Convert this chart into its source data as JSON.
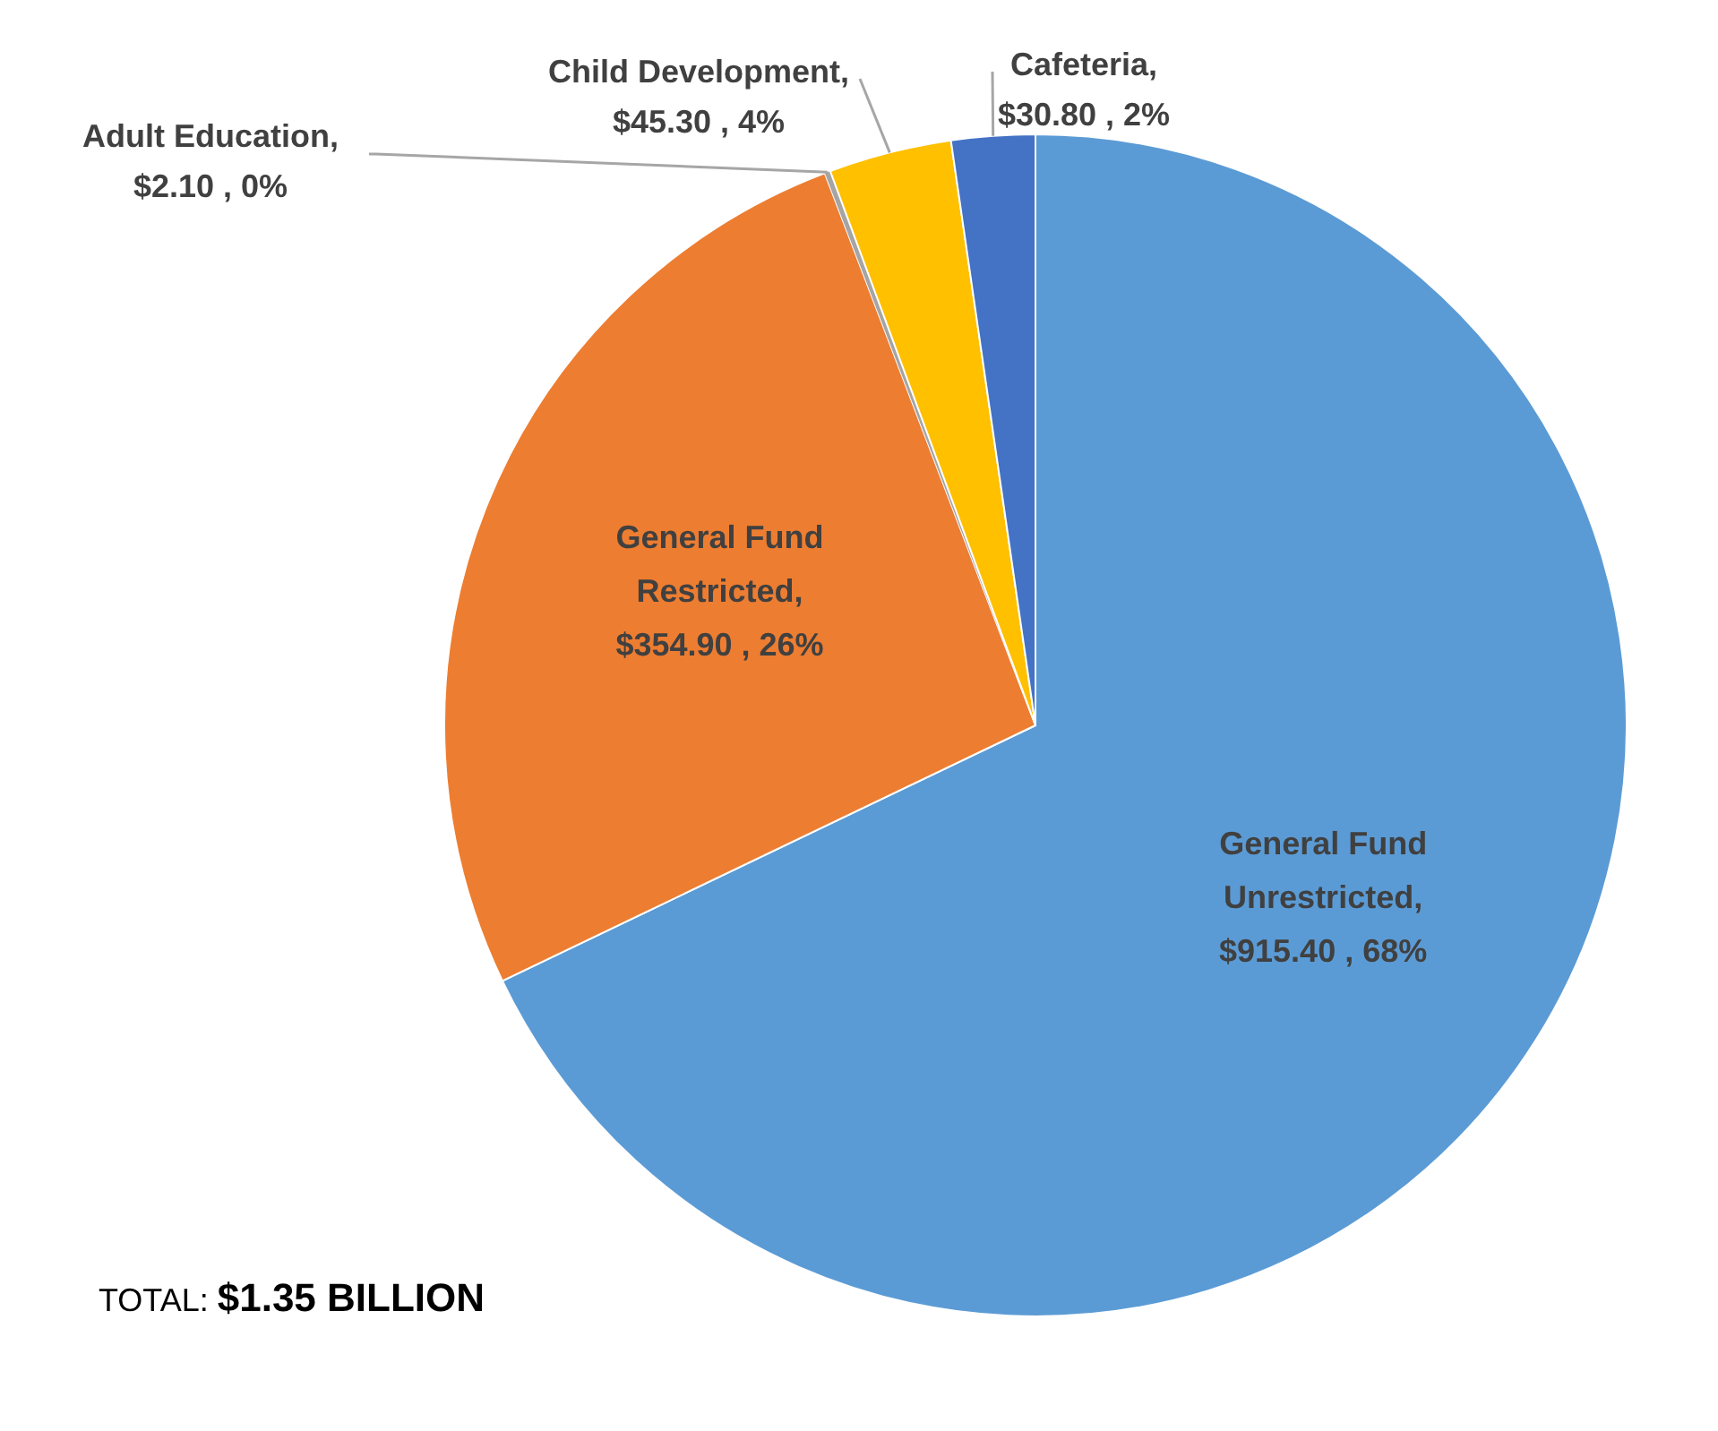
{
  "chart_data": {
    "type": "pie",
    "categories": [
      "General Fund Unrestricted",
      "General Fund Restricted",
      "Adult Education",
      "Child Development",
      "Cafeteria"
    ],
    "values": [
      915.4,
      354.9,
      2.1,
      45.3,
      30.8
    ],
    "colors": [
      "#5b9bd5",
      "#ed7d31",
      "#a5a5a5",
      "#ffc000",
      "#4472c4"
    ],
    "value_labels": [
      ", $915.40 , 68%",
      ", $354.90 , 26%",
      ", $2.10 , 0%",
      ", $45.30 , 4%",
      ", $30.80 , 2%"
    ],
    "annotations": [
      "TOTAL: $1.35 BILLION"
    ]
  }
}
